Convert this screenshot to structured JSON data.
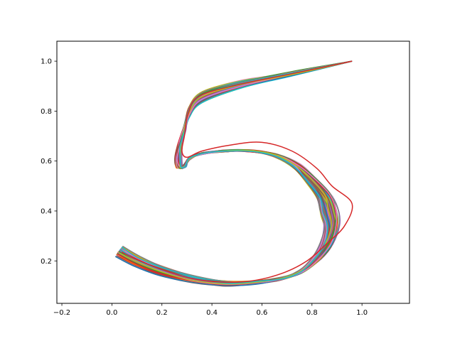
{
  "chart_data": {
    "type": "line",
    "title": "",
    "xlabel": "",
    "ylabel": "",
    "xlim": [
      -0.22,
      1.19
    ],
    "ylim": [
      0.03,
      1.08
    ],
    "xticks": [
      -0.2,
      0.0,
      0.2,
      0.4,
      0.6,
      0.8,
      1.0
    ],
    "xtick_labels": [
      "−0.2",
      "0.0",
      "0.2",
      "0.4",
      "0.6",
      "0.8",
      "1.0"
    ],
    "yticks": [
      0.2,
      0.4,
      0.6,
      0.8,
      1.0
    ],
    "ytick_labels": [
      "0.2",
      "0.4",
      "0.6",
      "0.8",
      "1.0"
    ],
    "grid": false,
    "legend": "none",
    "series_count": 100,
    "palette": [
      "#1f77b4",
      "#ff7f0e",
      "#2ca02c",
      "#d62728",
      "#9467bd",
      "#8c564b",
      "#e377c2",
      "#7f7f7f",
      "#bcbd22",
      "#17becf"
    ],
    "base_curve": {
      "x": [
        0.96,
        0.72,
        0.52,
        0.36,
        0.31,
        0.29,
        0.27,
        0.265,
        0.27,
        0.29,
        0.31,
        0.36,
        0.45,
        0.56,
        0.66,
        0.74,
        0.8,
        0.85,
        0.87,
        0.88,
        0.86,
        0.82,
        0.76,
        0.68,
        0.58,
        0.46,
        0.33,
        0.2,
        0.1,
        0.03
      ],
      "y": [
        1.0,
        0.95,
        0.91,
        0.86,
        0.8,
        0.73,
        0.66,
        0.61,
        0.575,
        0.58,
        0.61,
        0.63,
        0.64,
        0.64,
        0.62,
        0.58,
        0.52,
        0.46,
        0.4,
        0.34,
        0.27,
        0.21,
        0.16,
        0.13,
        0.115,
        0.11,
        0.125,
        0.16,
        0.2,
        0.24
      ]
    }
  }
}
